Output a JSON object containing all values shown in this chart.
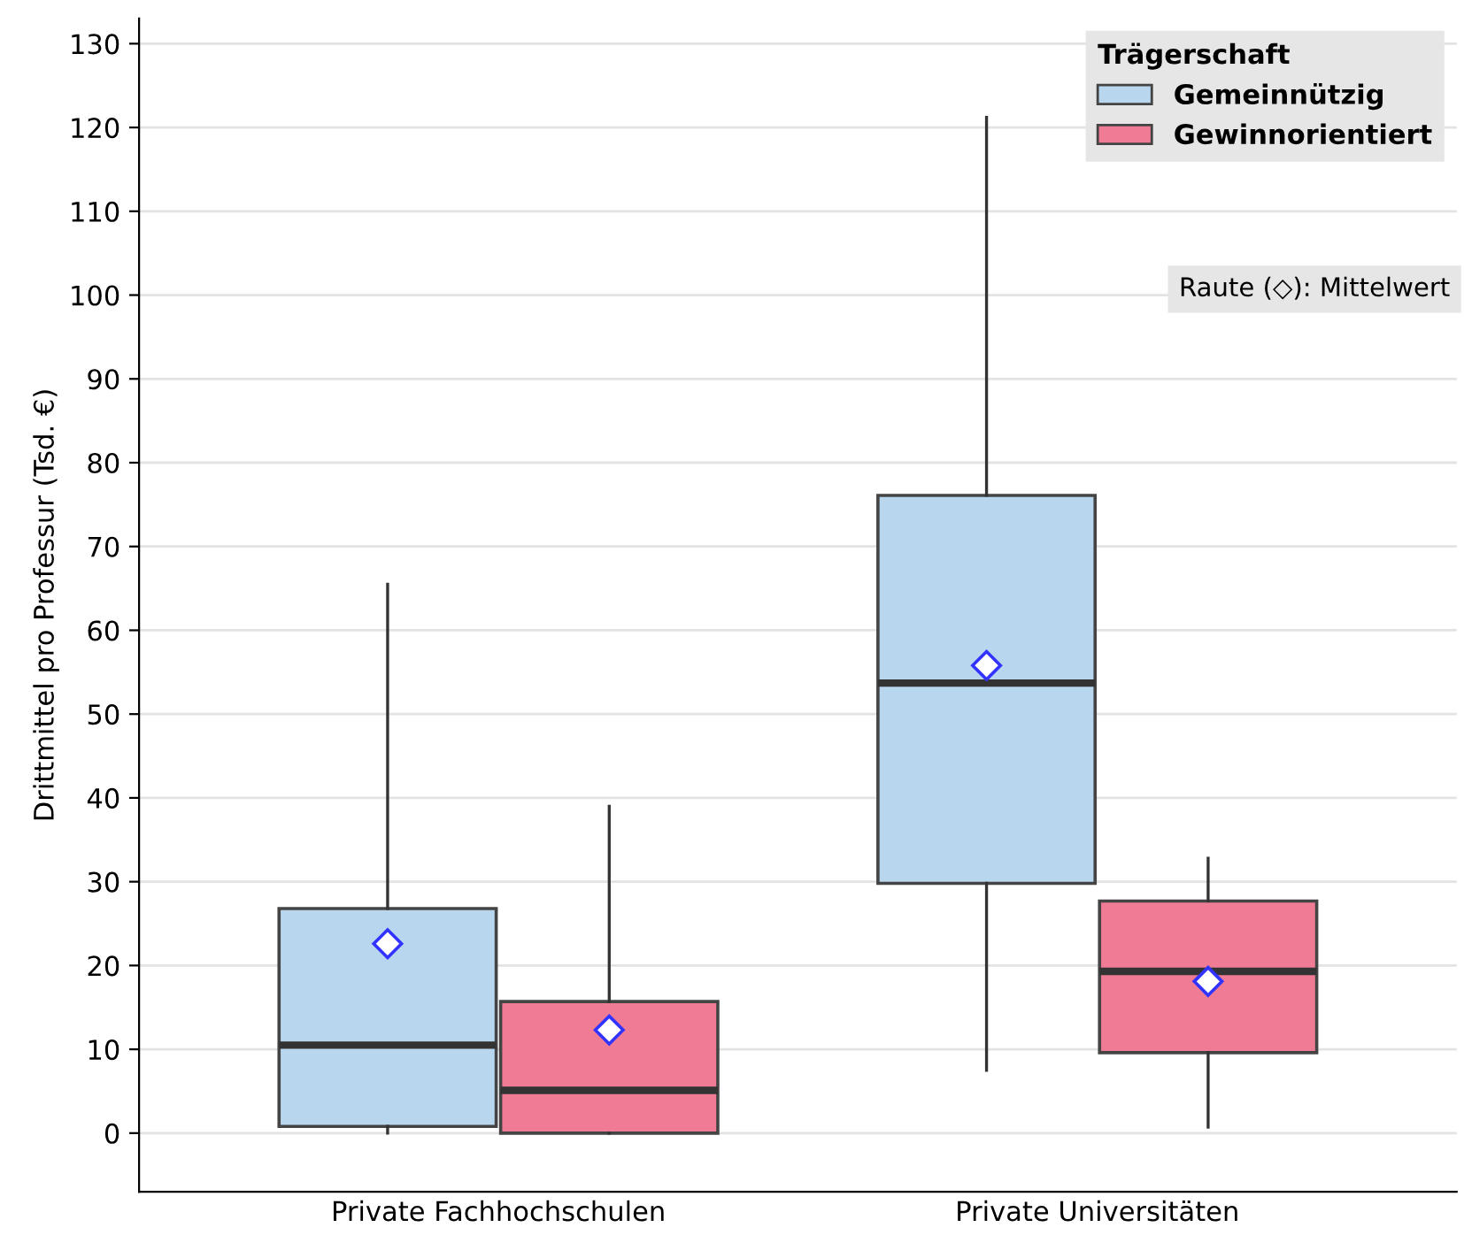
{
  "chart_data": {
    "type": "box",
    "ylabel": "Drittmittel pro Professur (Tsd. €)",
    "legend_title": "Trägerschaft",
    "categories": [
      "Private Fachhochschulen",
      "Private Universitäten"
    ],
    "series": [
      {
        "name": "Gemeinnützig",
        "color": "#b8d6ee",
        "boxes": [
          {
            "low": 0,
            "q1": 0.8,
            "median": 10.5,
            "q3": 26.8,
            "high": 65.5,
            "mean": 22.6
          },
          {
            "low": 7.5,
            "q1": 29.8,
            "median": 53.7,
            "q3": 76.1,
            "high": 121.2,
            "mean": 55.8
          }
        ]
      },
      {
        "name": "Gewinnorientiert",
        "color": "#f07b94",
        "boxes": [
          {
            "low": 0,
            "q1": 0,
            "median": 5.1,
            "q3": 15.7,
            "high": 39,
            "mean": 12.3
          },
          {
            "low": 0.7,
            "q1": 9.6,
            "median": 19.3,
            "q3": 27.7,
            "high": 32.8,
            "mean": 18.1
          }
        ]
      }
    ],
    "ylim": [
      -7,
      133
    ],
    "yticks": [
      0,
      10,
      20,
      30,
      40,
      50,
      60,
      70,
      80,
      90,
      100,
      110,
      120,
      130
    ],
    "grid": "y",
    "legend": "top right",
    "marker": "diamond",
    "annotations": [
      "Raute (◇): Mittelwert"
    ]
  }
}
